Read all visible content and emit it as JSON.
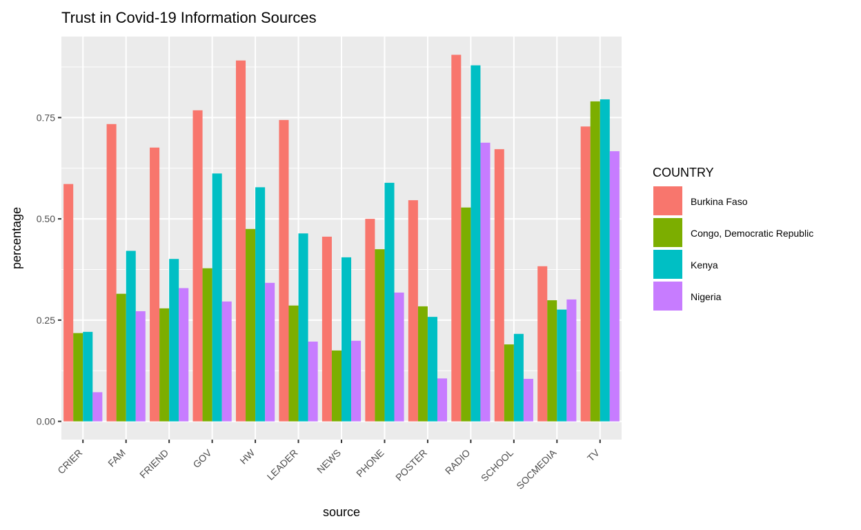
{
  "chart_data": {
    "type": "bar",
    "title": "Trust in Covid-19 Information Sources",
    "xlabel": "source",
    "ylabel": "percentage",
    "ylim": [
      -0.045,
      0.95
    ],
    "yticks": [
      0,
      0.25,
      0.5,
      0.75
    ],
    "ytick_labels": [
      "0.00",
      "0.25",
      "0.50",
      "0.75"
    ],
    "grid": true,
    "legend_position": "right",
    "legend_title": "COUNTRY",
    "categories": [
      "CRIER",
      "FAM",
      "FRIEND",
      "GOV",
      "HW",
      "LEADER",
      "NEWS",
      "PHONE",
      "POSTER",
      "RADIO",
      "SCHOOL",
      "SOCMEDIA",
      "TV"
    ],
    "series": [
      {
        "name": "Burkina Faso",
        "color": "#F8766D",
        "values": [
          0.586,
          0.734,
          0.676,
          0.768,
          0.891,
          0.744,
          0.456,
          0.5,
          0.546,
          0.905,
          0.672,
          0.383,
          0.728
        ]
      },
      {
        "name": "Congo, Democratic Republic",
        "color": "#7CAE00",
        "values": [
          0.218,
          0.315,
          0.279,
          0.378,
          0.475,
          0.286,
          0.175,
          0.425,
          0.284,
          0.528,
          0.19,
          0.299,
          0.79
        ]
      },
      {
        "name": "Kenya",
        "color": "#00BFC4",
        "values": [
          0.221,
          0.421,
          0.401,
          0.612,
          0.578,
          0.464,
          0.405,
          0.589,
          0.258,
          0.879,
          0.216,
          0.276,
          0.795
        ]
      },
      {
        "name": "Nigeria",
        "color": "#C77CFF",
        "values": [
          0.072,
          0.272,
          0.329,
          0.296,
          0.342,
          0.197,
          0.199,
          0.318,
          0.106,
          0.688,
          0.105,
          0.301,
          0.667
        ]
      }
    ]
  }
}
